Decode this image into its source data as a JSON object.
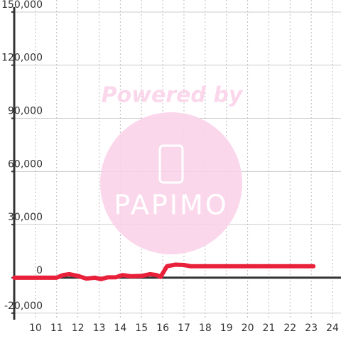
{
  "chart_data": {
    "type": "line",
    "x": [
      9,
      11,
      11.3,
      11.6,
      12,
      12.4,
      12.8,
      13.1,
      13.4,
      13.8,
      14.1,
      14.5,
      15,
      15.4,
      15.7,
      15.9,
      16.2,
      16.6,
      17,
      17.3,
      23.1
    ],
    "values": [
      0,
      0,
      1500,
      2000,
      1000,
      -500,
      0,
      -800,
      200,
      300,
      1500,
      800,
      1000,
      2000,
      1500,
      500,
      6500,
      7400,
      7200,
      6500,
      6500
    ],
    "color": "#e8203a",
    "xlim": [
      9,
      24.4
    ],
    "xticks": [
      10,
      11,
      12,
      13,
      14,
      15,
      16,
      17,
      18,
      19,
      20,
      21,
      22,
      23,
      24
    ],
    "ylim": [
      -23700,
      156800
    ],
    "yticks": [
      {
        "value": -20000,
        "label": "-20,000"
      },
      0,
      {
        "value": 30000,
        "label": "30,000"
      },
      {
        "value": 60000,
        "label": "60,000"
      },
      {
        "value": 90000,
        "label": "90,000"
      },
      {
        "value": 120000,
        "label": "120,000"
      },
      {
        "value": 150000,
        "label": "150,000"
      }
    ],
    "grid": true,
    "watermark": {
      "title": "Powered by",
      "logo": "PAPIMO"
    }
  }
}
